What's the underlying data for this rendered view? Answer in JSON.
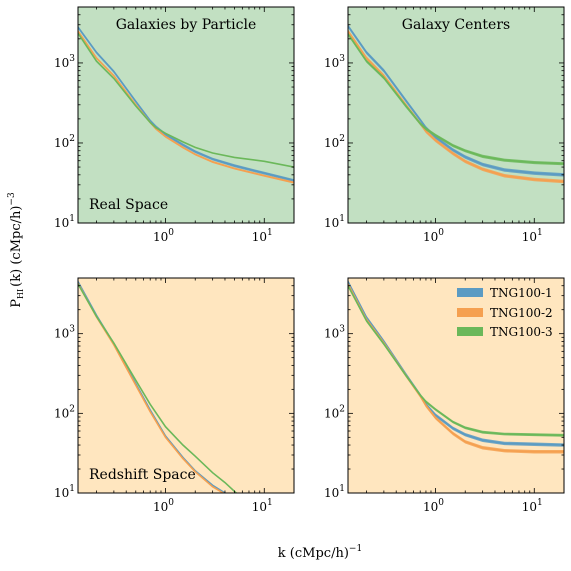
{
  "figure": {
    "xlabel": "k (cMpc/h)",
    "xlabel_exp": "−1",
    "ylabel_main": "P",
    "ylabel_sub": "HI",
    "ylabel_rest": "(k) (cMpc/h)",
    "ylabel_exp": "−3"
  },
  "colors": {
    "real_space_bg": "#c2e0c2",
    "redshift_space_bg": "#ffe6bf",
    "TNG100-1": "#5b9bc3",
    "TNG100-2": "#f5a050",
    "TNG100-3": "#6bb85a"
  },
  "legend": {
    "placement": "upper-right of bottom-right panel",
    "entries": [
      "TNG100-1",
      "TNG100-2",
      "TNG100-3"
    ]
  },
  "chart_data": [
    {
      "type": "line",
      "panel": "top-left",
      "title": "Galaxies by Particle",
      "annotation": "Real Space",
      "background": "real_space_bg",
      "xscale": "log",
      "yscale": "log",
      "xlim": [
        0.13,
        20
      ],
      "ylim": [
        10,
        5000
      ],
      "x_ticks": [
        {
          "value": 1,
          "base": "10",
          "exp": "0"
        },
        {
          "value": 10,
          "base": "10",
          "exp": "1"
        }
      ],
      "y_ticks": [
        {
          "value": 10,
          "base": "10",
          "exp": "1"
        },
        {
          "value": 100,
          "base": "10",
          "exp": "2"
        },
        {
          "value": 1000,
          "base": "10",
          "exp": "3"
        }
      ],
      "x": [
        0.13,
        0.2,
        0.3,
        0.5,
        0.7,
        0.8,
        1.0,
        1.5,
        2,
        3,
        5,
        10,
        20
      ],
      "series": [
        {
          "name": "TNG100-1",
          "values": [
            2800,
            1350,
            780,
            330,
            190,
            160,
            128,
            95,
            78,
            63,
            52,
            42,
            34
          ],
          "band": 0.04
        },
        {
          "name": "TNG100-2",
          "values": [
            2500,
            1150,
            690,
            300,
            180,
            150,
            120,
            88,
            72,
            58,
            48,
            39,
            32
          ],
          "band": 0.03
        },
        {
          "name": "TNG100-3",
          "values": [
            2350,
            1050,
            640,
            290,
            180,
            155,
            132,
            103,
            88,
            75,
            66,
            59,
            50
          ],
          "band": 0.012
        }
      ]
    },
    {
      "type": "line",
      "panel": "top-right",
      "title": "Galaxy Centers",
      "annotation": "",
      "background": "real_space_bg",
      "xscale": "log",
      "yscale": "log",
      "xlim": [
        0.13,
        20
      ],
      "ylim": [
        10,
        5000
      ],
      "x_ticks": [
        {
          "value": 1,
          "base": "10",
          "exp": "0"
        },
        {
          "value": 10,
          "base": "10",
          "exp": "1"
        }
      ],
      "y_ticks": [
        {
          "value": 10,
          "base": "10",
          "exp": "1"
        },
        {
          "value": 100,
          "base": "10",
          "exp": "2"
        },
        {
          "value": 1000,
          "base": "10",
          "exp": "3"
        }
      ],
      "x": [
        0.13,
        0.2,
        0.3,
        0.5,
        0.7,
        0.8,
        1.0,
        1.5,
        2,
        3,
        5,
        10,
        20
      ],
      "series": [
        {
          "name": "TNG100-1",
          "values": [
            2900,
            1350,
            800,
            340,
            195,
            155,
            118,
            82,
            67,
            54,
            46,
            42,
            40
          ],
          "band": 0.05
        },
        {
          "name": "TNG100-2",
          "values": [
            2500,
            1150,
            690,
            300,
            175,
            140,
            108,
            74,
            59,
            47,
            39,
            35,
            33
          ],
          "band": 0.05
        },
        {
          "name": "TNG100-3",
          "values": [
            2300,
            1050,
            650,
            290,
            175,
            150,
            125,
            93,
            80,
            68,
            61,
            57,
            55
          ],
          "band": 0.045
        }
      ]
    },
    {
      "type": "line",
      "panel": "bottom-left",
      "title": "",
      "annotation": "Redshift Space",
      "background": "redshift_space_bg",
      "xscale": "log",
      "yscale": "log",
      "xlim": [
        0.13,
        20
      ],
      "ylim": [
        10,
        5000
      ],
      "x_ticks": [
        {
          "value": 1,
          "base": "10",
          "exp": "0"
        },
        {
          "value": 10,
          "base": "10",
          "exp": "1"
        }
      ],
      "y_ticks": [
        {
          "value": 10,
          "base": "10",
          "exp": "1"
        },
        {
          "value": 100,
          "base": "10",
          "exp": "2"
        },
        {
          "value": 1000,
          "base": "10",
          "exp": "3"
        }
      ],
      "x": [
        0.13,
        0.2,
        0.3,
        0.5,
        0.7,
        1.0,
        1.5,
        2,
        3,
        4,
        5.2
      ],
      "series": [
        {
          "name": "TNG100-1",
          "values": [
            4500,
            1700,
            750,
            235,
            110,
            52,
            28,
            19,
            12.5,
            10,
            8
          ],
          "band": 0.02
        },
        {
          "name": "TNG100-2",
          "values": [
            4300,
            1620,
            720,
            225,
            105,
            50,
            27,
            18.5,
            12,
            9.7,
            8
          ],
          "band": 0.012
        },
        {
          "name": "TNG100-3",
          "values": [
            4200,
            1650,
            760,
            260,
            130,
            68,
            40,
            29,
            18,
            13.5,
            10
          ],
          "band": 0.008
        }
      ]
    },
    {
      "type": "line",
      "panel": "bottom-right",
      "title": "",
      "annotation": "",
      "background": "redshift_space_bg",
      "xscale": "log",
      "yscale": "log",
      "xlim": [
        0.13,
        20
      ],
      "ylim": [
        10,
        5000
      ],
      "x_ticks": [
        {
          "value": 1,
          "base": "10",
          "exp": "0"
        },
        {
          "value": 10,
          "base": "10",
          "exp": "1"
        }
      ],
      "y_ticks": [
        {
          "value": 10,
          "base": "10",
          "exp": "1"
        },
        {
          "value": 100,
          "base": "10",
          "exp": "2"
        },
        {
          "value": 1000,
          "base": "10",
          "exp": "3"
        }
      ],
      "x": [
        0.13,
        0.2,
        0.3,
        0.5,
        0.7,
        0.8,
        1.0,
        1.5,
        2,
        3,
        5,
        10,
        20
      ],
      "series": [
        {
          "name": "TNG100-1",
          "values": [
            4500,
            1600,
            800,
            310,
            170,
            130,
            95,
            65,
            54,
            46,
            42,
            41,
            40
          ],
          "band": 0.05
        },
        {
          "name": "TNG100-2",
          "values": [
            4200,
            1500,
            760,
            300,
            165,
            125,
            88,
            56,
            44,
            37,
            34,
            33,
            33
          ],
          "band": 0.05
        },
        {
          "name": "TNG100-3",
          "values": [
            4000,
            1450,
            740,
            300,
            170,
            140,
            112,
            78,
            66,
            58,
            55,
            54,
            53
          ],
          "band": 0.04
        }
      ]
    }
  ]
}
